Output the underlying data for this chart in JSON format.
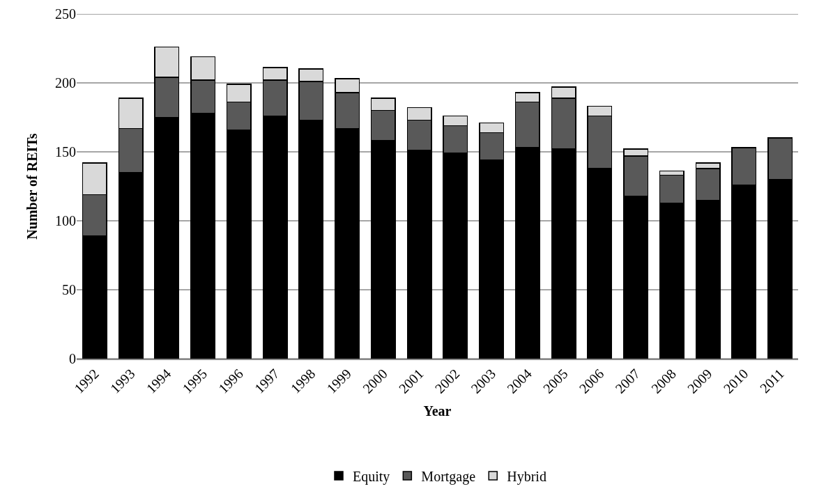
{
  "chart_data": {
    "type": "bar",
    "stacked": true,
    "xlabel": "Year",
    "ylabel": "Number of REITs",
    "categories": [
      "1992",
      "1993",
      "1994",
      "1995",
      "1996",
      "1997",
      "1998",
      "1999",
      "2000",
      "2001",
      "2002",
      "2003",
      "2004",
      "2005",
      "2006",
      "2007",
      "2008",
      "2009",
      "2010",
      "2011"
    ],
    "series": [
      {
        "name": "Equity",
        "color": "#000000",
        "values": [
          89,
          135,
          175,
          178,
          166,
          176,
          173,
          167,
          158,
          151,
          149,
          144,
          153,
          152,
          138,
          118,
          113,
          115,
          126,
          130
        ]
      },
      {
        "name": "Mortgage",
        "color": "#595959",
        "values": [
          30,
          32,
          29,
          24,
          20,
          26,
          28,
          26,
          22,
          22,
          20,
          20,
          33,
          37,
          38,
          29,
          20,
          23,
          27,
          30
        ]
      },
      {
        "name": "Hybrid",
        "color": "#d9d9d9",
        "values": [
          23,
          22,
          22,
          17,
          13,
          9,
          9,
          10,
          9,
          9,
          7,
          7,
          7,
          8,
          7,
          5,
          3,
          4,
          null,
          null
        ]
      }
    ],
    "ylim": [
      0,
      250
    ],
    "yticks": [
      0,
      50,
      100,
      150,
      200,
      250
    ],
    "grid": "y",
    "legend": "bottom"
  }
}
